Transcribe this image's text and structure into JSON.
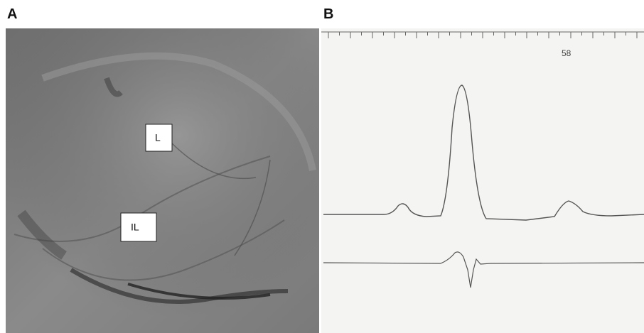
{
  "panels": [
    {
      "label": "A",
      "annotations": [
        "L",
        "IL"
      ]
    },
    {
      "label": "B",
      "marker": "58"
    }
  ]
}
